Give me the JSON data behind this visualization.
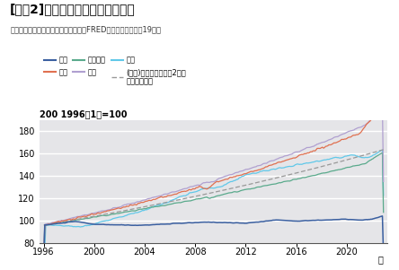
{
  "title": "[図表2]消費者物価指数の国際比較",
  "subtitle": "出所：総務省、米セントルイス連銀・FRED　注：ユーロ圏は19か国",
  "ylabel_annot": "200 1996年1月=100",
  "xlabel_text": "年",
  "ylim": [
    80,
    190
  ],
  "yticks": [
    80,
    100,
    120,
    140,
    160,
    180
  ],
  "xticks": [
    1996,
    2000,
    2004,
    2008,
    2012,
    2016,
    2020
  ],
  "xmin": 1995.7,
  "xmax": 2023.2,
  "colors": {
    "japan": "#3a5fa0",
    "usa": "#e07050",
    "euro": "#5aaa8c",
    "uk": "#b0a0d0",
    "china": "#60c8e8",
    "ref": "#999999"
  },
  "bg_color": "#e5e5e8",
  "legend_row1": [
    "日本",
    "米国",
    "ユーロ圏"
  ],
  "legend_row2": [
    "英国",
    "中国",
    "(参考)前年比上昇率が2％で\n推移した場合"
  ],
  "title_fontsize": 10,
  "subtitle_fontsize": 6,
  "legend_fontsize": 6,
  "tick_fontsize": 7,
  "ylabel_fontsize": 7
}
